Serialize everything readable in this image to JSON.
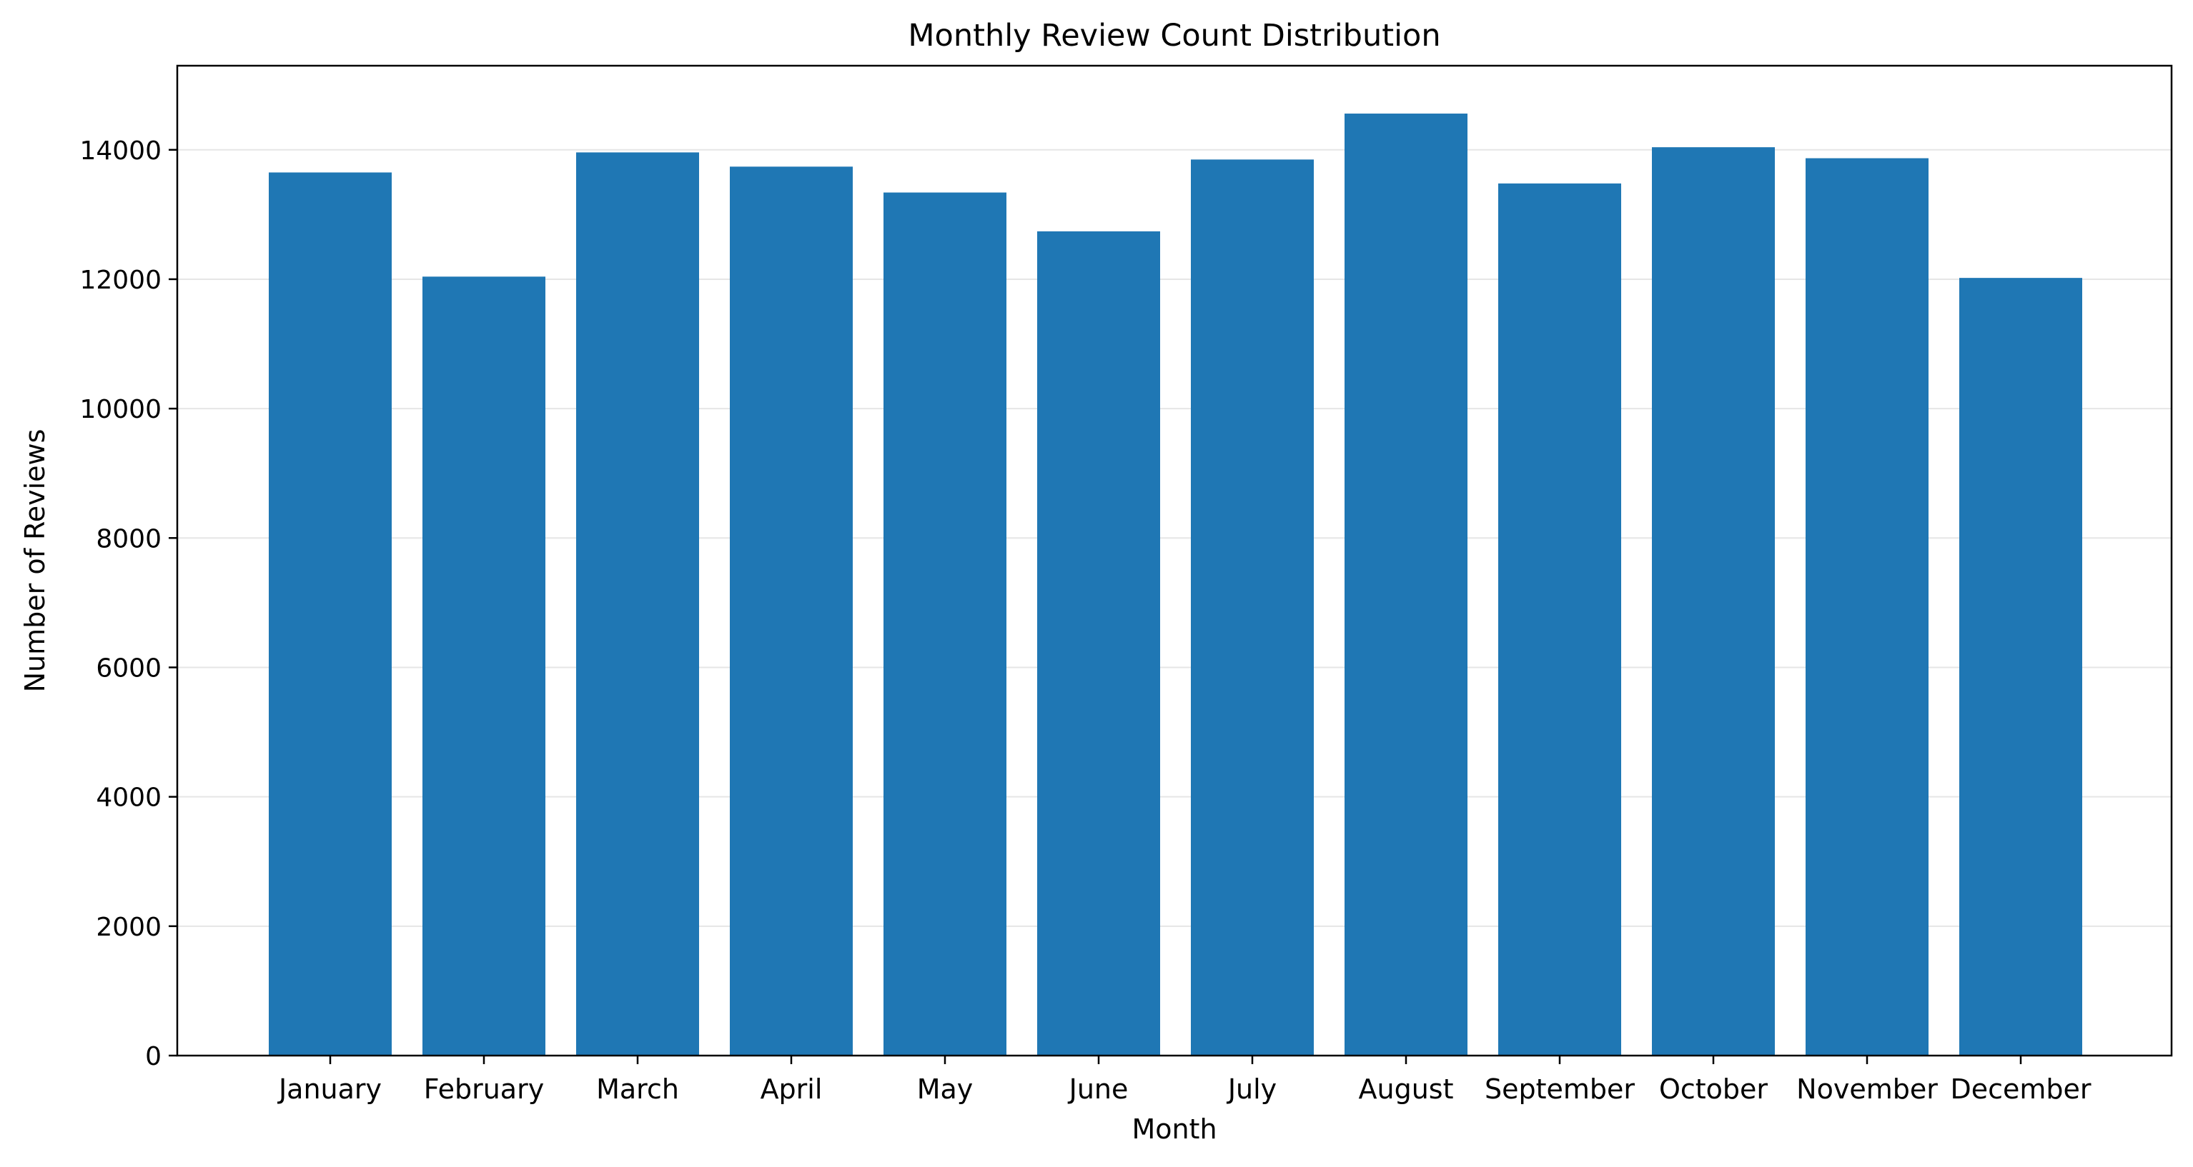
{
  "chart_data": {
    "type": "bar",
    "title": "Monthly Review Count Distribution",
    "xlabel": "Month",
    "ylabel": "Number of Reviews",
    "categories": [
      "January",
      "February",
      "March",
      "April",
      "May",
      "June",
      "July",
      "August",
      "September",
      "October",
      "November",
      "December"
    ],
    "values": [
      13650,
      12040,
      13960,
      13740,
      13340,
      12740,
      13850,
      14560,
      13480,
      14040,
      13870,
      12020
    ],
    "ylim": [
      0,
      15300
    ],
    "yticks": [
      0,
      2000,
      4000,
      6000,
      8000,
      10000,
      12000,
      14000
    ],
    "grid": "y",
    "bar_color": "#1f77b4",
    "grid_color": "#e6e6e6"
  }
}
